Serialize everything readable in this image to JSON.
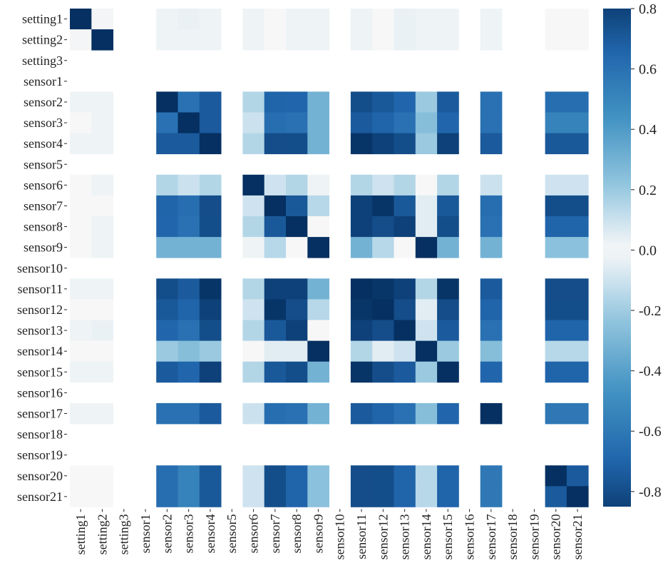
{
  "chart_data": {
    "type": "heatmap",
    "title": "",
    "xlabel": "",
    "ylabel": "",
    "labels": [
      "setting1",
      "setting2",
      "setting3",
      "sensor1",
      "sensor2",
      "sensor3",
      "sensor4",
      "sensor5",
      "sensor6",
      "sensor7",
      "sensor8",
      "sensor9",
      "sensor10",
      "sensor11",
      "sensor12",
      "sensor13",
      "sensor14",
      "sensor15",
      "sensor16",
      "sensor17",
      "sensor18",
      "sensor19",
      "sensor20",
      "sensor21"
    ],
    "missing": [
      "setting3",
      "sensor1",
      "sensor5",
      "sensor10",
      "sensor16",
      "sensor18",
      "sensor19"
    ],
    "matrix": [
      [
        1.0,
        0.01,
        null,
        null,
        0.02,
        0.03,
        0.02,
        null,
        0.02,
        0.0,
        0.02,
        0.02,
        null,
        0.02,
        0.0,
        0.03,
        0.02,
        0.02,
        null,
        0.02,
        null,
        null,
        0.0,
        0.0
      ],
      [
        0.01,
        1.0,
        null,
        null,
        0.02,
        0.02,
        0.02,
        null,
        0.02,
        0.0,
        0.02,
        0.02,
        null,
        0.02,
        0.0,
        0.03,
        0.02,
        0.02,
        null,
        0.02,
        null,
        null,
        0.0,
        0.0
      ],
      [
        null,
        null,
        null,
        null,
        null,
        null,
        null,
        null,
        null,
        null,
        null,
        null,
        null,
        null,
        null,
        null,
        null,
        null,
        null,
        null,
        null,
        null,
        null,
        null
      ],
      [
        null,
        null,
        null,
        null,
        null,
        null,
        null,
        null,
        null,
        null,
        null,
        null,
        null,
        null,
        null,
        null,
        null,
        null,
        null,
        null,
        null,
        null,
        null,
        null
      ],
      [
        0.02,
        0.02,
        null,
        null,
        1.0,
        0.6,
        0.7,
        null,
        0.15,
        -0.7,
        0.65,
        0.3,
        null,
        0.75,
        -0.75,
        0.65,
        0.2,
        0.7,
        null,
        0.6,
        null,
        null,
        -0.65,
        -0.65
      ],
      [
        0.0,
        0.02,
        null,
        null,
        0.6,
        1.0,
        0.7,
        null,
        0.1,
        -0.65,
        0.6,
        0.3,
        null,
        0.7,
        -0.7,
        0.6,
        0.25,
        0.65,
        null,
        0.6,
        null,
        null,
        -0.55,
        -0.55
      ],
      [
        0.02,
        0.02,
        null,
        null,
        0.7,
        0.7,
        1.0,
        null,
        0.15,
        -0.8,
        0.75,
        0.3,
        null,
        0.85,
        -0.85,
        0.75,
        0.2,
        0.8,
        null,
        0.7,
        null,
        null,
        -0.75,
        -0.75
      ],
      [
        null,
        null,
        null,
        null,
        null,
        null,
        null,
        null,
        null,
        null,
        null,
        null,
        null,
        null,
        null,
        null,
        null,
        null,
        null,
        null,
        null,
        null,
        null,
        null
      ],
      [
        0.0,
        0.02,
        null,
        null,
        0.15,
        0.1,
        0.15,
        null,
        1.0,
        -0.1,
        0.15,
        0.02,
        null,
        0.15,
        -0.1,
        0.15,
        0.0,
        0.15,
        null,
        0.1,
        null,
        null,
        -0.1,
        -0.1
      ],
      [
        0.0,
        0.0,
        null,
        null,
        -0.7,
        -0.65,
        -0.8,
        null,
        -0.1,
        1.0,
        -0.75,
        -0.15,
        null,
        -0.85,
        0.85,
        -0.75,
        -0.05,
        -0.75,
        null,
        -0.65,
        null,
        null,
        0.75,
        0.75
      ],
      [
        0.0,
        0.02,
        null,
        null,
        0.65,
        0.6,
        0.75,
        null,
        0.15,
        -0.75,
        1.0,
        0.0,
        null,
        0.8,
        -0.8,
        0.8,
        -0.05,
        0.75,
        null,
        0.6,
        null,
        null,
        -0.7,
        -0.7
      ],
      [
        0.0,
        0.02,
        null,
        null,
        0.3,
        0.3,
        0.3,
        null,
        0.02,
        -0.15,
        0.0,
        1.0,
        null,
        0.3,
        -0.15,
        0.0,
        0.9,
        0.3,
        null,
        0.3,
        null,
        null,
        -0.25,
        -0.25
      ],
      [
        null,
        null,
        null,
        null,
        null,
        null,
        null,
        null,
        null,
        null,
        null,
        null,
        null,
        null,
        null,
        null,
        null,
        null,
        null,
        null,
        null,
        null,
        null,
        null
      ],
      [
        0.02,
        0.02,
        null,
        null,
        0.75,
        0.7,
        0.85,
        null,
        0.15,
        -0.85,
        0.8,
        0.3,
        null,
        1.0,
        -0.9,
        0.8,
        0.15,
        0.85,
        null,
        0.7,
        null,
        null,
        -0.8,
        -0.8
      ],
      [
        0.0,
        0.0,
        null,
        null,
        -0.75,
        -0.7,
        -0.85,
        null,
        -0.1,
        0.85,
        -0.8,
        -0.15,
        null,
        -0.9,
        1.0,
        -0.8,
        -0.05,
        -0.8,
        null,
        -0.7,
        null,
        null,
        0.75,
        0.75
      ],
      [
        0.02,
        0.03,
        null,
        null,
        0.65,
        0.6,
        0.75,
        null,
        0.15,
        -0.75,
        0.8,
        0.0,
        null,
        0.8,
        -0.8,
        1.0,
        -0.1,
        0.7,
        null,
        0.6,
        null,
        null,
        -0.7,
        -0.7
      ],
      [
        0.0,
        0.0,
        null,
        null,
        0.2,
        0.25,
        0.2,
        null,
        0.0,
        -0.05,
        -0.05,
        0.9,
        null,
        0.15,
        -0.05,
        -0.1,
        1.0,
        0.2,
        null,
        0.25,
        null,
        null,
        -0.15,
        -0.15
      ],
      [
        0.02,
        0.02,
        null,
        null,
        0.7,
        0.65,
        0.8,
        null,
        0.15,
        -0.75,
        0.75,
        0.3,
        null,
        0.85,
        -0.8,
        0.7,
        0.2,
        1.0,
        null,
        0.65,
        null,
        null,
        -0.7,
        -0.7
      ],
      [
        null,
        null,
        null,
        null,
        null,
        null,
        null,
        null,
        null,
        null,
        null,
        null,
        null,
        null,
        null,
        null,
        null,
        null,
        null,
        null,
        null,
        null,
        null,
        null
      ],
      [
        0.02,
        0.02,
        null,
        null,
        0.6,
        0.6,
        0.7,
        null,
        0.1,
        -0.65,
        0.6,
        0.3,
        null,
        0.7,
        -0.7,
        0.6,
        0.25,
        0.65,
        null,
        1.0,
        null,
        null,
        -0.6,
        -0.6
      ],
      [
        null,
        null,
        null,
        null,
        null,
        null,
        null,
        null,
        null,
        null,
        null,
        null,
        null,
        null,
        null,
        null,
        null,
        null,
        null,
        null,
        null,
        null,
        null,
        null
      ],
      [
        null,
        null,
        null,
        null,
        null,
        null,
        null,
        null,
        null,
        null,
        null,
        null,
        null,
        null,
        null,
        null,
        null,
        null,
        null,
        null,
        null,
        null,
        null,
        null
      ],
      [
        0.0,
        0.0,
        null,
        null,
        -0.65,
        -0.55,
        -0.75,
        null,
        -0.1,
        0.75,
        -0.7,
        -0.25,
        null,
        -0.8,
        0.75,
        -0.7,
        -0.15,
        -0.7,
        null,
        -0.6,
        null,
        null,
        1.0,
        0.7
      ],
      [
        0.0,
        0.0,
        null,
        null,
        -0.65,
        -0.55,
        -0.75,
        null,
        -0.1,
        0.75,
        -0.7,
        -0.25,
        null,
        -0.8,
        0.75,
        -0.7,
        -0.15,
        -0.7,
        null,
        -0.6,
        null,
        null,
        0.7,
        1.0
      ]
    ],
    "colorbar": {
      "vmin": -0.85,
      "vmax": 0.8,
      "ticks": [
        0.8,
        0.6,
        0.4,
        0.2,
        0.0,
        -0.2,
        -0.4,
        -0.6,
        -0.8
      ],
      "tick_labels": [
        "0.8",
        "0.6",
        "0.4",
        "0.2",
        "0.0",
        "-0.2",
        "-0.4",
        "-0.6",
        "-0.8"
      ],
      "colormap": "RdBu"
    }
  }
}
